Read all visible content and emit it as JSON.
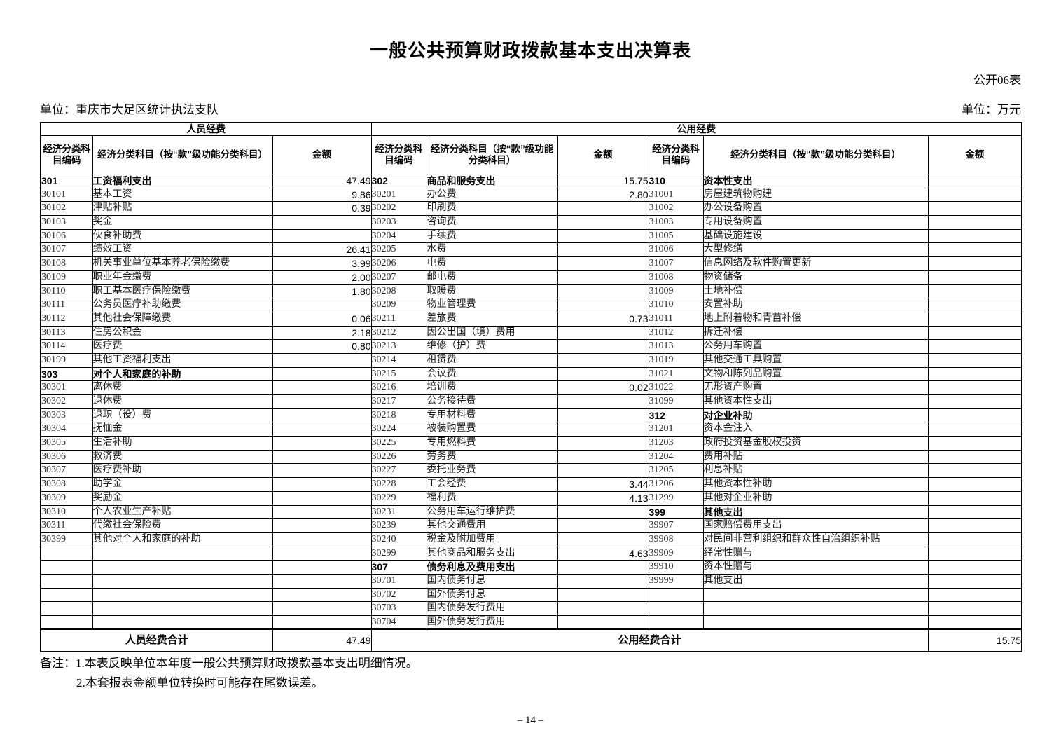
{
  "page": {
    "title": "一般公共预算财政拨款基本支出决算表",
    "doc_label": "公开06表",
    "unit_org": "单位：重庆市大足区统计执法支队",
    "unit_money": "单位：万元",
    "notes_label": "备注：",
    "note1": "1.本表反映单位本年度一般公共预算财政拨款基本支出明细情况。",
    "note2": "2.本套报表金额单位转换时可能存在尾数误差。",
    "page_number": "– 14 –"
  },
  "table": {
    "group_personnel": "人员经费",
    "group_public": "公用经费",
    "col_code": "经济分类科目编码",
    "col_subject": "经济分类科目（按“款”级功能分类科目）",
    "col_amount": "金额",
    "totals": {
      "personnel_label": "人员经费合计",
      "personnel_amount": "47.49",
      "public_label": "公用经费合计",
      "public_amount": "15.75"
    },
    "sections": {
      "personnel": [
        {
          "code": "301",
          "name": "工资福利支出",
          "amount": "47.49",
          "h": true
        },
        {
          "code": "30101",
          "name": "基本工资",
          "amount": "9.86"
        },
        {
          "code": "30102",
          "name": "津贴补贴",
          "amount": "0.39"
        },
        {
          "code": "30103",
          "name": "奖金",
          "amount": ""
        },
        {
          "code": "30106",
          "name": "伙食补助费",
          "amount": ""
        },
        {
          "code": "30107",
          "name": "绩效工资",
          "amount": "26.41"
        },
        {
          "code": "30108",
          "name": "机关事业单位基本养老保险缴费",
          "amount": "3.99"
        },
        {
          "code": "30109",
          "name": "职业年金缴费",
          "amount": "2.00"
        },
        {
          "code": "30110",
          "name": "职工基本医疗保险缴费",
          "amount": "1.80"
        },
        {
          "code": "30111",
          "name": "公务员医疗补助缴费",
          "amount": ""
        },
        {
          "code": "30112",
          "name": "其他社会保障缴费",
          "amount": "0.06"
        },
        {
          "code": "30113",
          "name": "住房公积金",
          "amount": "2.18"
        },
        {
          "code": "30114",
          "name": "医疗费",
          "amount": "0.80"
        },
        {
          "code": "30199",
          "name": "其他工资福利支出",
          "amount": ""
        },
        {
          "code": "303",
          "name": "对个人和家庭的补助",
          "amount": "",
          "h": true
        },
        {
          "code": "30301",
          "name": "离休费",
          "amount": ""
        },
        {
          "code": "30302",
          "name": "退休费",
          "amount": ""
        },
        {
          "code": "30303",
          "name": "退职（役）费",
          "amount": ""
        },
        {
          "code": "30304",
          "name": "抚恤金",
          "amount": ""
        },
        {
          "code": "30305",
          "name": "生活补助",
          "amount": ""
        },
        {
          "code": "30306",
          "name": "救济费",
          "amount": ""
        },
        {
          "code": "30307",
          "name": "医疗费补助",
          "amount": ""
        },
        {
          "code": "30308",
          "name": "助学金",
          "amount": ""
        },
        {
          "code": "30309",
          "name": "奖励金",
          "amount": ""
        },
        {
          "code": "30310",
          "name": "个人农业生产补贴",
          "amount": ""
        },
        {
          "code": "30311",
          "name": "代缴社会保险费",
          "amount": ""
        },
        {
          "code": "30399",
          "name": "其他对个人和家庭的补助",
          "amount": ""
        },
        {
          "code": "",
          "name": "",
          "amount": ""
        },
        {
          "code": "",
          "name": "",
          "amount": ""
        },
        {
          "code": "",
          "name": "",
          "amount": ""
        },
        {
          "code": "",
          "name": "",
          "amount": ""
        },
        {
          "code": "",
          "name": "",
          "amount": ""
        },
        {
          "code": "",
          "name": "",
          "amount": ""
        }
      ],
      "public_a": [
        {
          "code": "302",
          "name": "商品和服务支出",
          "amount": "15.75",
          "h": true
        },
        {
          "code": "30201",
          "name": "办公费",
          "amount": "2.80"
        },
        {
          "code": "30202",
          "name": "印刷费",
          "amount": ""
        },
        {
          "code": "30203",
          "name": "咨询费",
          "amount": ""
        },
        {
          "code": "30204",
          "name": "手续费",
          "amount": ""
        },
        {
          "code": "30205",
          "name": "水费",
          "amount": ""
        },
        {
          "code": "30206",
          "name": "电费",
          "amount": ""
        },
        {
          "code": "30207",
          "name": "邮电费",
          "amount": ""
        },
        {
          "code": "30208",
          "name": "取暖费",
          "amount": ""
        },
        {
          "code": "30209",
          "name": "物业管理费",
          "amount": ""
        },
        {
          "code": "30211",
          "name": "差旅费",
          "amount": "0.73"
        },
        {
          "code": "30212",
          "name": "因公出国（境）费用",
          "amount": ""
        },
        {
          "code": "30213",
          "name": "维修（护）费",
          "amount": ""
        },
        {
          "code": "30214",
          "name": "租赁费",
          "amount": ""
        },
        {
          "code": "30215",
          "name": "会议费",
          "amount": ""
        },
        {
          "code": "30216",
          "name": "培训费",
          "amount": "0.02"
        },
        {
          "code": "30217",
          "name": "公务接待费",
          "amount": ""
        },
        {
          "code": "30218",
          "name": "专用材料费",
          "amount": ""
        },
        {
          "code": "30224",
          "name": "被装购置费",
          "amount": ""
        },
        {
          "code": "30225",
          "name": "专用燃料费",
          "amount": ""
        },
        {
          "code": "30226",
          "name": "劳务费",
          "amount": ""
        },
        {
          "code": "30227",
          "name": "委托业务费",
          "amount": ""
        },
        {
          "code": "30228",
          "name": "工会经费",
          "amount": "3.44"
        },
        {
          "code": "30229",
          "name": "福利费",
          "amount": "4.13"
        },
        {
          "code": "30231",
          "name": "公务用车运行维护费",
          "amount": ""
        },
        {
          "code": "30239",
          "name": "其他交通费用",
          "amount": ""
        },
        {
          "code": "30240",
          "name": "税金及附加费用",
          "amount": ""
        },
        {
          "code": "30299",
          "name": "其他商品和服务支出",
          "amount": "4.63"
        },
        {
          "code": "307",
          "name": "债务利息及费用支出",
          "amount": "",
          "h": true
        },
        {
          "code": "30701",
          "name": "国内债务付息",
          "amount": ""
        },
        {
          "code": "30702",
          "name": "国外债务付息",
          "amount": ""
        },
        {
          "code": "30703",
          "name": "国内债务发行费用",
          "amount": ""
        },
        {
          "code": "30704",
          "name": "国外债务发行费用",
          "amount": ""
        }
      ],
      "public_b": [
        {
          "code": "310",
          "name": "资本性支出",
          "amount": "",
          "h": true
        },
        {
          "code": "31001",
          "name": "房屋建筑物购建",
          "amount": ""
        },
        {
          "code": "31002",
          "name": "办公设备购置",
          "amount": ""
        },
        {
          "code": "31003",
          "name": "专用设备购置",
          "amount": ""
        },
        {
          "code": "31005",
          "name": "基础设施建设",
          "amount": ""
        },
        {
          "code": "31006",
          "name": "大型修缮",
          "amount": ""
        },
        {
          "code": "31007",
          "name": "信息网络及软件购置更新",
          "amount": ""
        },
        {
          "code": "31008",
          "name": "物资储备",
          "amount": ""
        },
        {
          "code": "31009",
          "name": "土地补偿",
          "amount": ""
        },
        {
          "code": "31010",
          "name": "安置补助",
          "amount": ""
        },
        {
          "code": "31011",
          "name": "地上附着物和青苗补偿",
          "amount": ""
        },
        {
          "code": "31012",
          "name": "拆迁补偿",
          "amount": ""
        },
        {
          "code": "31013",
          "name": "公务用车购置",
          "amount": ""
        },
        {
          "code": "31019",
          "name": "其他交通工具购置",
          "amount": ""
        },
        {
          "code": "31021",
          "name": "文物和陈列品购置",
          "amount": ""
        },
        {
          "code": "31022",
          "name": "无形资产购置",
          "amount": ""
        },
        {
          "code": "31099",
          "name": "其他资本性支出",
          "amount": ""
        },
        {
          "code": "312",
          "name": "对企业补助",
          "amount": "",
          "h": true
        },
        {
          "code": "31201",
          "name": "资本金注入",
          "amount": ""
        },
        {
          "code": "31203",
          "name": "政府投资基金股权投资",
          "amount": ""
        },
        {
          "code": "31204",
          "name": "费用补贴",
          "amount": ""
        },
        {
          "code": "31205",
          "name": "利息补贴",
          "amount": ""
        },
        {
          "code": "31206",
          "name": "其他资本性补助",
          "amount": ""
        },
        {
          "code": "31299",
          "name": "其他对企业补助",
          "amount": ""
        },
        {
          "code": "399",
          "name": "其他支出",
          "amount": "",
          "h": true
        },
        {
          "code": "39907",
          "name": "国家赔偿费用支出",
          "amount": ""
        },
        {
          "code": "39908",
          "name": "对民间非营利组织和群众性自治组织补贴",
          "amount": ""
        },
        {
          "code": "39909",
          "name": "经常性赠与",
          "amount": ""
        },
        {
          "code": "39910",
          "name": "资本性赠与",
          "amount": ""
        },
        {
          "code": "39999",
          "name": "其他支出",
          "amount": ""
        },
        {
          "code": "",
          "name": "",
          "amount": ""
        },
        {
          "code": "",
          "name": "",
          "amount": ""
        },
        {
          "code": "",
          "name": "",
          "amount": ""
        }
      ]
    }
  }
}
